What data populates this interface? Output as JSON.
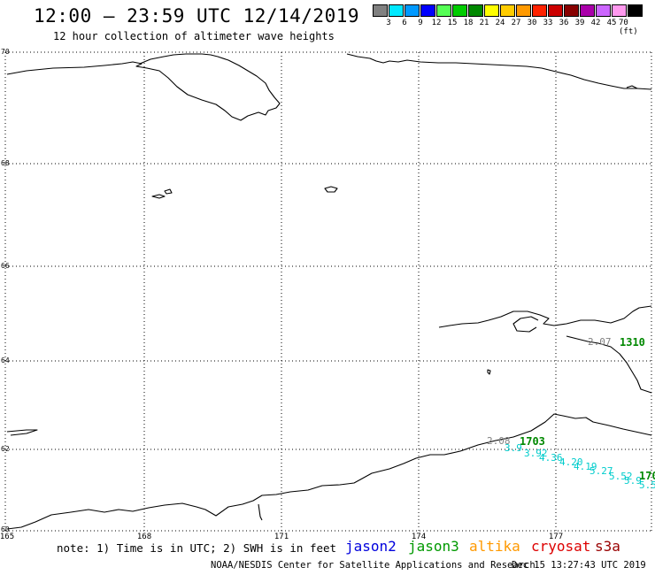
{
  "header": {
    "title": "12:00 – 23:59 UTC 12/14/2019",
    "subtitle": "12 hour collection of altimeter wave heights"
  },
  "colorbar": {
    "colors": [
      "#808080",
      "#00e8ff",
      "#0099ff",
      "#0000ff",
      "#55ff55",
      "#00cc00",
      "#008800",
      "#ffff00",
      "#ffcc00",
      "#ff9900",
      "#ff2200",
      "#cc0000",
      "#880000",
      "#aa00aa",
      "#cc66ff",
      "#ff99ee",
      "#000000"
    ],
    "labels": [
      "3",
      "6",
      "9",
      "12",
      "15",
      "18",
      "21",
      "24",
      "27",
      "30",
      "33",
      "36",
      "39",
      "42",
      "45",
      "70 (ft)"
    ]
  },
  "axes": {
    "lat_labels": [
      "70",
      "68",
      "66",
      "64",
      "62",
      "60"
    ],
    "lon_labels": [
      "165",
      "168",
      "171",
      "174",
      "177"
    ]
  },
  "observations": [
    {
      "value": "2.07",
      "color": "#808080"
    },
    {
      "value": "1310",
      "color": "#008800"
    },
    {
      "value": "2.08",
      "color": "#808080"
    },
    {
      "value": "1703",
      "color": "#008800"
    },
    {
      "value": "3.9",
      "color": "#00cccc"
    },
    {
      "value": "3.92",
      "color": "#00cccc"
    },
    {
      "value": "4.36",
      "color": "#00cccc"
    },
    {
      "value": "4.20",
      "color": "#00cccc"
    },
    {
      "value": "4.19",
      "color": "#00cccc"
    },
    {
      "value": "5.27",
      "color": "#00cccc"
    },
    {
      "value": "5.52",
      "color": "#00cccc"
    },
    {
      "value": "5.9",
      "color": "#00cccc"
    },
    {
      "value": "5.5",
      "color": "#00cccc"
    },
    {
      "value": "170",
      "color": "#008800"
    }
  ],
  "note": "note: 1) Time is in UTC; 2) SWH is in feet",
  "satellites": [
    {
      "name": "jason2",
      "color": "#0000dd"
    },
    {
      "name": "jason3",
      "color": "#009900"
    },
    {
      "name": "altika",
      "color": "#ff9900"
    },
    {
      "name": "cryosat",
      "color": "#dd0000"
    },
    {
      "name": "s3a",
      "color": "#990000"
    }
  ],
  "footer": "NOAA/NESDIS Center for Satellite Applications and Research",
  "timestamp": "Dec 15 13:27:43 UTC 2019"
}
